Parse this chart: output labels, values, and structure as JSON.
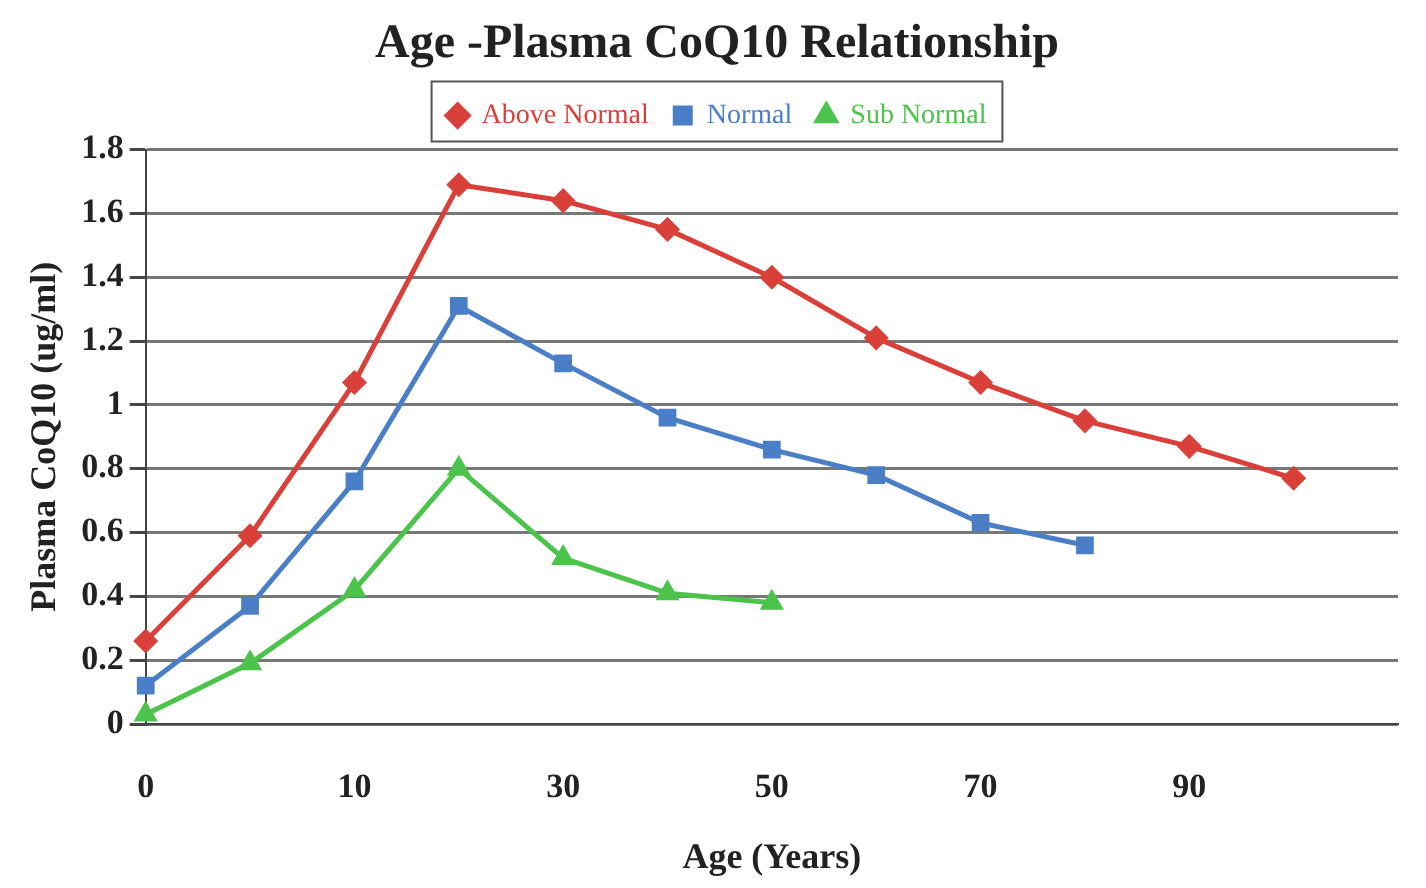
{
  "chart_data": {
    "type": "line",
    "title": "Age -Plasma CoQ10 Relationship",
    "xlabel": "Age (Years)",
    "ylabel": "Plasma CoQ10 (ug/ml)",
    "categories": [
      "0",
      null,
      "10",
      null,
      "30",
      null,
      "50",
      null,
      "70",
      null,
      "90",
      null,
      null
    ],
    "series": [
      {
        "name": "Above Normal",
        "color": "#d9403a",
        "marker": "diamond",
        "values": [
          0.26,
          0.59,
          1.07,
          1.69,
          1.64,
          1.55,
          1.4,
          1.21,
          1.07,
          0.95,
          0.87,
          0.77,
          null
        ]
      },
      {
        "name": "Normal",
        "color": "#4a7fc8",
        "marker": "square",
        "values": [
          0.12,
          0.37,
          0.76,
          1.31,
          1.13,
          0.96,
          0.86,
          0.78,
          0.63,
          0.56,
          null,
          null,
          null
        ]
      },
      {
        "name": "Sub Normal",
        "color": "#4cc34a",
        "marker": "triangle",
        "values": [
          0.03,
          0.19,
          0.42,
          0.8,
          0.52,
          0.41,
          0.38,
          null,
          null,
          null,
          null,
          null,
          null
        ]
      }
    ],
    "ylim": [
      0,
      1.8
    ],
    "yticks": [
      0,
      0.2,
      0.4,
      0.6,
      0.8,
      1,
      1.2,
      1.4,
      1.6,
      1.8
    ],
    "grid": "y",
    "legend": "top"
  }
}
